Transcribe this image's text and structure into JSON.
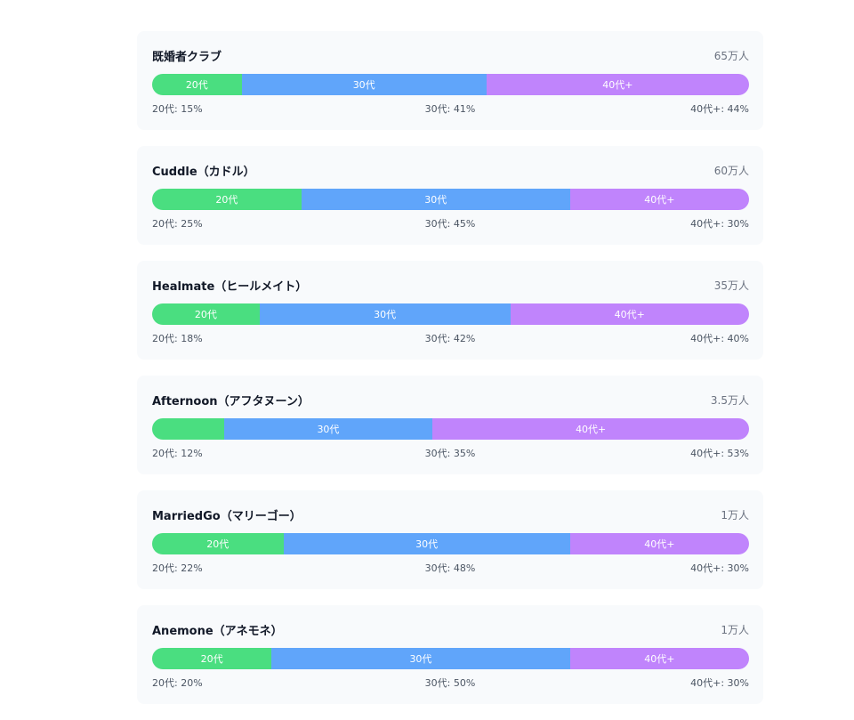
{
  "colors": {
    "age20": "#4ade80",
    "age30": "#60a5fa",
    "age40": "#c084fc"
  },
  "chart_data": {
    "type": "bar",
    "orientation": "horizontal-stacked-100",
    "series_names": [
      "20代",
      "30代",
      "40代+"
    ],
    "label_prefixes": [
      "20代: ",
      "30代: ",
      "40代+: "
    ],
    "items": [
      {
        "name": "既婚者クラブ",
        "users": "65万人",
        "values": [
          15,
          41,
          44
        ]
      },
      {
        "name": "Cuddle（カドル）",
        "users": "60万人",
        "values": [
          25,
          45,
          30
        ]
      },
      {
        "name": "Healmate（ヒールメイト）",
        "users": "35万人",
        "values": [
          18,
          42,
          40
        ]
      },
      {
        "name": "Afternoon（アフタヌーン）",
        "users": "3.5万人",
        "values": [
          12,
          35,
          53
        ]
      },
      {
        "name": "MarriedGo（マリーゴー）",
        "users": "1万人",
        "values": [
          22,
          48,
          30
        ]
      },
      {
        "name": "Anemone（アネモネ）",
        "users": "1万人",
        "values": [
          20,
          50,
          30
        ]
      }
    ]
  }
}
